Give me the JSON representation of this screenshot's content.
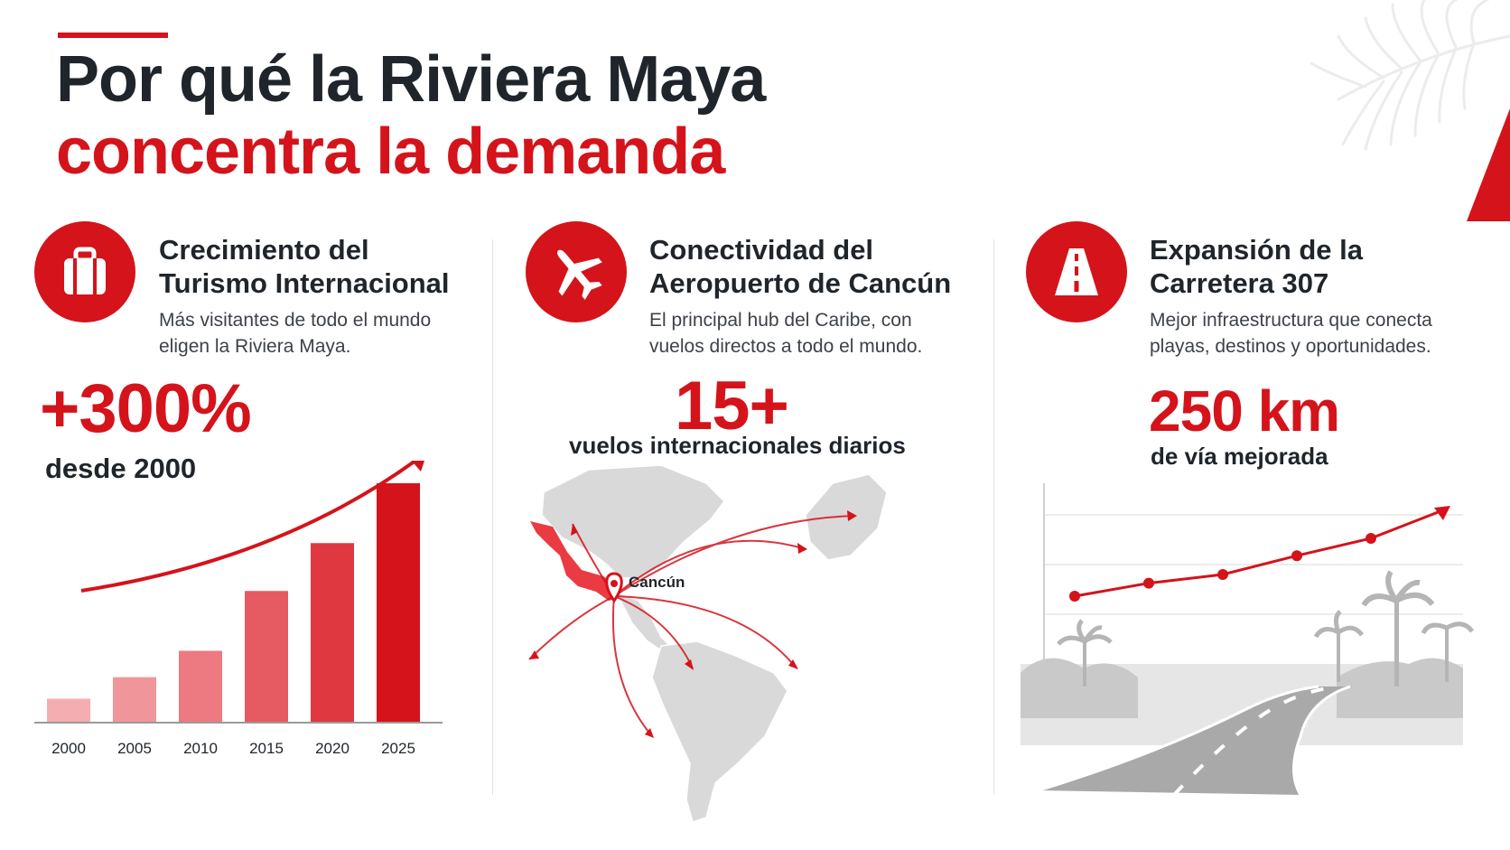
{
  "title": {
    "line1": "Por qué la Riviera Maya",
    "line2": "concentra la demanda"
  },
  "colors": {
    "accent": "#d4131b",
    "text_dark": "#1f252b",
    "text_body": "#3d4248",
    "map_land": "#d9d9d9"
  },
  "columns": [
    {
      "icon": "suitcase-icon",
      "title_line1": "Crecimiento del",
      "title_line2": "Turismo Internacional",
      "desc_line1": "Más visitantes de todo el mundo",
      "desc_line2": "eligen la Riviera Maya.",
      "stat": "+300%",
      "stat_sub": "desde 2000"
    },
    {
      "icon": "airplane-icon",
      "title_line1": "Conectividad del",
      "title_line2": "Aeropuerto de Cancún",
      "desc_line1": "El principal hub del Caribe, con",
      "desc_line2": "vuelos directos a todo el mundo.",
      "stat": "15+",
      "stat_sub": "vuelos internacionales diarios",
      "map_label": "Cancún"
    },
    {
      "icon": "highway-icon",
      "title_line1": "Expansión de la",
      "title_line2": "Carretera 307",
      "desc_line1": "Mejor infraestructura que conecta",
      "desc_line2": "playas, destinos y oportunidades.",
      "stat": "250 km",
      "stat_sub": "de vía mejorada"
    }
  ],
  "chart_data": {
    "type": "bar",
    "categories": [
      "2000",
      "2005",
      "2010",
      "2015",
      "2020",
      "2025"
    ],
    "values": [
      1.0,
      1.9,
      3.0,
      5.5,
      7.5,
      10.0
    ],
    "colors": [
      "#f4aeb1",
      "#f09599",
      "#ec7a80",
      "#e65a61",
      "#df3840",
      "#d4131b"
    ],
    "title": "",
    "xlabel": "",
    "ylabel": "",
    "ylim": [
      0,
      10
    ],
    "trend_arrow": true
  },
  "road_chart": {
    "type": "line",
    "values": [
      1.0,
      1.9,
      2.5,
      3.8,
      5.0,
      7.0
    ],
    "trend_arrow": true
  }
}
